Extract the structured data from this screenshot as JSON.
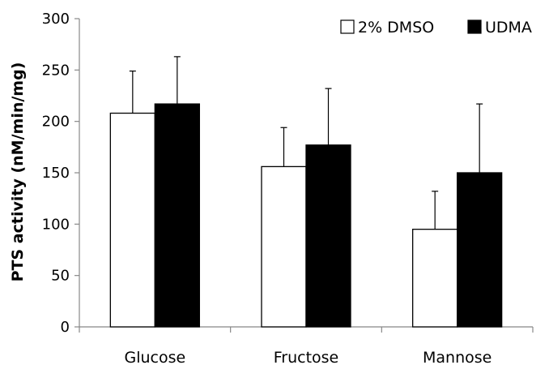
{
  "chart_data": {
    "type": "bar",
    "title": "",
    "xlabel": "",
    "ylabel": "PTS activity (nM/min/mg)",
    "ylim": [
      0,
      300
    ],
    "yticks": [
      0,
      50,
      100,
      150,
      200,
      250,
      300
    ],
    "categories": [
      "Glucose",
      "Fructose",
      "Mannose"
    ],
    "series": [
      {
        "name": "2% DMSO",
        "color": "#ffffff",
        "values": [
          208,
          156,
          95
        ],
        "errors": [
          41,
          38,
          37
        ]
      },
      {
        "name": "UDMA",
        "color": "#000000",
        "values": [
          217,
          177,
          150
        ],
        "errors": [
          46,
          55,
          67
        ]
      }
    ],
    "legend_position": "top-right",
    "grid": false
  }
}
